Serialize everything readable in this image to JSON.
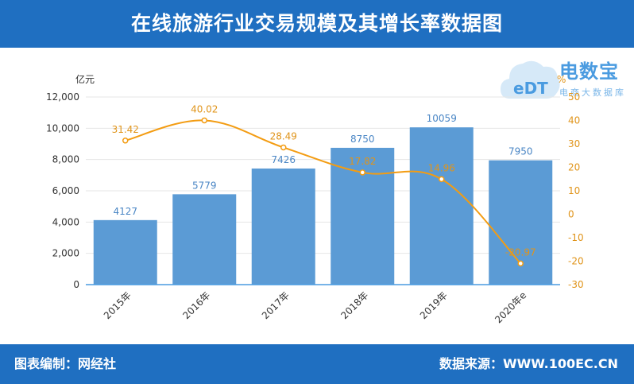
{
  "header": {
    "title": "在线旅游行业交易规模及其增长率数据图"
  },
  "footer": {
    "left": "图表编制：网经社",
    "right": "数据来源：WWW.100EC.CN"
  },
  "logo": {
    "main": "电数宝",
    "sub": "电商大数据库",
    "mark": "eDT"
  },
  "chart_data": {
    "type": "bar",
    "categories": [
      "2015年",
      "2016年",
      "2017年",
      "2018年",
      "2019年",
      "2020年e"
    ],
    "series": [
      {
        "values": [
          4127,
          5779,
          7426,
          8750,
          10059,
          7950
        ],
        "axis": "left",
        "kind": "bar",
        "color": "#5b9bd5"
      },
      {
        "values": [
          31.42,
          40.02,
          28.49,
          17.82,
          14.96,
          -20.97
        ],
        "axis": "right",
        "kind": "line",
        "color": "#f39c12"
      }
    ],
    "ylabel": "亿元",
    "y2label": "%",
    "ylim": [
      0,
      12000
    ],
    "yticks": [
      0,
      2000,
      4000,
      6000,
      8000,
      10000,
      12000
    ],
    "ytick_labels": [
      "0",
      "2,000",
      "4,000",
      "6,000",
      "8,000",
      "10,000",
      "12,000"
    ],
    "y2lim": [
      -30,
      50
    ],
    "y2ticks": [
      -30,
      -20,
      -10,
      0,
      10,
      20,
      30,
      40,
      50
    ],
    "bar_label_color": "#4a86c5",
    "line_label_color": "#e0941a",
    "axis_text_color": "#333333",
    "right_axis_color": "#e0941a"
  }
}
